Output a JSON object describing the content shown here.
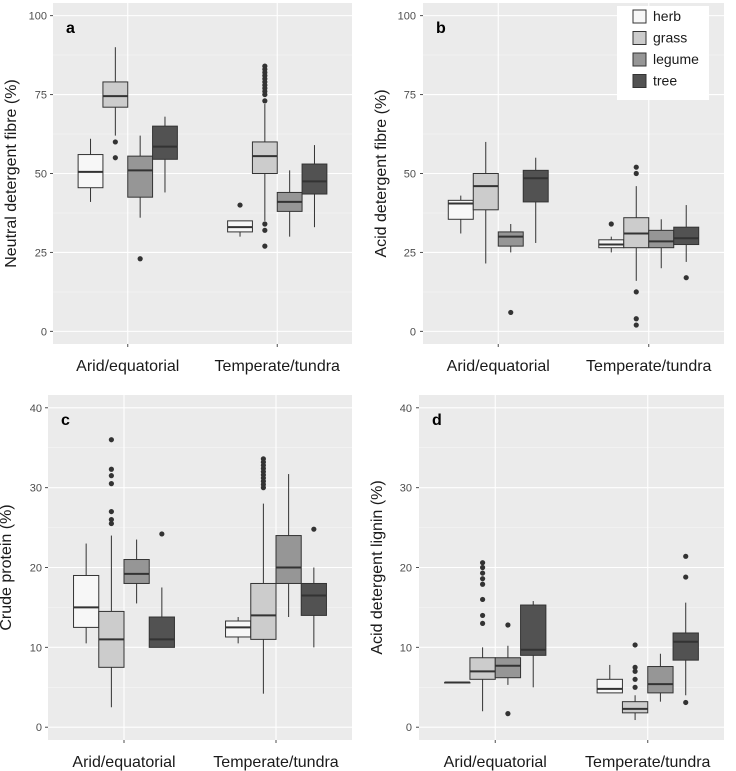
{
  "group_labels": [
    "Arid/equatorial",
    "Temperate/tundra"
  ],
  "legend": {
    "entries": [
      {
        "name": "herb",
        "color": "#f7f7f7"
      },
      {
        "name": "grass",
        "color": "#cccccc"
      },
      {
        "name": "legume",
        "color": "#969696"
      },
      {
        "name": "tree",
        "color": "#525252"
      }
    ]
  },
  "colors": {
    "panel_bg": "#ebebeb",
    "grid": "#ffffff",
    "box_stroke": "#333333",
    "outlier": "#333333"
  },
  "chart_data": [
    {
      "type": "boxplot",
      "panel": "a",
      "ylabel": "Neutral detergent fibre (%)",
      "ylim": [
        -4,
        104
      ],
      "yticks": [
        0,
        25,
        50,
        75,
        100
      ],
      "categories": [
        "Arid/equatorial",
        "Temperate/tundra"
      ],
      "series": [
        {
          "name": "herb",
          "boxes": [
            {
              "min": 41,
              "q1": 45.5,
              "median": 50.5,
              "q3": 56,
              "max": 61,
              "outliers": []
            },
            {
              "min": 30,
              "q1": 31.5,
              "median": 33,
              "q3": 35,
              "max": 35,
              "outliers": [
                40
              ]
            }
          ]
        },
        {
          "name": "grass",
          "boxes": [
            {
              "min": 62,
              "q1": 71,
              "median": 74.5,
              "q3": 79,
              "max": 90,
              "outliers": [
                60,
                55
              ]
            },
            {
              "min": 35,
              "q1": 50,
              "median": 55.5,
              "q3": 60,
              "max": 72,
              "outliers": [
                84,
                83,
                82,
                81,
                80,
                79,
                78,
                77,
                76,
                75,
                73,
                34,
                32,
                27
              ]
            }
          ]
        },
        {
          "name": "legume",
          "boxes": [
            {
              "min": 36,
              "q1": 42.5,
              "median": 51,
              "q3": 55.5,
              "max": 62,
              "outliers": [
                23
              ]
            },
            {
              "min": 30,
              "q1": 38,
              "median": 41,
              "q3": 44,
              "max": 51,
              "outliers": []
            }
          ]
        },
        {
          "name": "tree",
          "boxes": [
            {
              "min": 44,
              "q1": 54.5,
              "median": 58.5,
              "q3": 65,
              "max": 68,
              "outliers": []
            },
            {
              "min": 33,
              "q1": 43.5,
              "median": 47.5,
              "q3": 53,
              "max": 59,
              "outliers": []
            }
          ]
        }
      ]
    },
    {
      "type": "boxplot",
      "panel": "b",
      "ylabel": "Acid detergent fibre (%)",
      "ylim": [
        -4,
        104
      ],
      "yticks": [
        0,
        25,
        50,
        75,
        100
      ],
      "categories": [
        "Arid/equatorial",
        "Temperate/tundra"
      ],
      "series": [
        {
          "name": "herb",
          "boxes": [
            {
              "min": 31,
              "q1": 35.5,
              "median": 40.5,
              "q3": 41.5,
              "max": 43,
              "outliers": []
            },
            {
              "min": 25,
              "q1": 26.5,
              "median": 27.5,
              "q3": 29,
              "max": 30,
              "outliers": [
                34
              ]
            }
          ]
        },
        {
          "name": "grass",
          "boxes": [
            {
              "min": 21.5,
              "q1": 38.5,
              "median": 46,
              "q3": 50,
              "max": 60,
              "outliers": []
            },
            {
              "min": 16,
              "q1": 26.5,
              "median": 31,
              "q3": 36,
              "max": 46,
              "outliers": [
                52,
                50,
                12.5,
                4,
                2
              ]
            }
          ]
        },
        {
          "name": "legume",
          "boxes": [
            {
              "min": 25,
              "q1": 27,
              "median": 30,
              "q3": 31.5,
              "max": 34,
              "outliers": [
                6
              ]
            },
            {
              "min": 20,
              "q1": 26.5,
              "median": 28.5,
              "q3": 32,
              "max": 35.5,
              "outliers": []
            }
          ]
        },
        {
          "name": "tree",
          "boxes": [
            {
              "min": 28,
              "q1": 41,
              "median": 48.5,
              "q3": 51,
              "max": 55,
              "outliers": []
            },
            {
              "min": 22,
              "q1": 27.5,
              "median": 29.5,
              "q3": 33,
              "max": 40,
              "outliers": [
                17
              ]
            }
          ]
        }
      ]
    },
    {
      "type": "boxplot",
      "panel": "c",
      "ylabel": "Crude protein  (%)",
      "ylim": [
        -1.6,
        41.6
      ],
      "yticks": [
        0,
        10,
        20,
        30,
        40
      ],
      "categories": [
        "Arid/equatorial",
        "Temperate/tundra"
      ],
      "series": [
        {
          "name": "herb",
          "boxes": [
            {
              "min": 10.5,
              "q1": 12.5,
              "median": 15,
              "q3": 19,
              "max": 23,
              "outliers": []
            },
            {
              "min": 10.5,
              "q1": 11.3,
              "median": 12.5,
              "q3": 13.3,
              "max": 13.8,
              "outliers": []
            }
          ]
        },
        {
          "name": "grass",
          "boxes": [
            {
              "min": 2.5,
              "q1": 7.5,
              "median": 11,
              "q3": 14.5,
              "max": 24,
              "outliers": [
                36,
                32.3,
                31.5,
                30.5,
                27,
                26,
                25.5
              ]
            },
            {
              "min": 4.2,
              "q1": 11,
              "median": 14,
              "q3": 18,
              "max": 28,
              "outliers": [
                33.6,
                33.2,
                32.8,
                32.4,
                32,
                31.6,
                31.2,
                30.8,
                30.4,
                30
              ]
            }
          ]
        },
        {
          "name": "legume",
          "boxes": [
            {
              "min": 15.5,
              "q1": 18,
              "median": 19.2,
              "q3": 21,
              "max": 23.5,
              "outliers": []
            },
            {
              "min": 13.8,
              "q1": 18,
              "median": 20,
              "q3": 24,
              "max": 31.7,
              "outliers": []
            }
          ]
        },
        {
          "name": "tree",
          "boxes": [
            {
              "min": 10,
              "q1": 10,
              "median": 11,
              "q3": 13.8,
              "max": 17.5,
              "outliers": [
                24.2
              ]
            },
            {
              "min": 10,
              "q1": 14,
              "median": 16.5,
              "q3": 18,
              "max": 20,
              "outliers": [
                24.8
              ]
            }
          ]
        }
      ]
    },
    {
      "type": "boxplot",
      "panel": "d",
      "ylabel": "Acid detergent lignin (%)",
      "ylim": [
        -1.6,
        41.6
      ],
      "yticks": [
        0,
        10,
        20,
        30,
        40
      ],
      "categories": [
        "Arid/equatorial",
        "Temperate/tundra"
      ],
      "series": [
        {
          "name": "herb",
          "boxes": [
            {
              "min": 5.6,
              "q1": 5.6,
              "median": 5.6,
              "q3": 5.6,
              "max": 5.6,
              "outliers": []
            },
            {
              "min": 4.3,
              "q1": 4.3,
              "median": 4.8,
              "q3": 6,
              "max": 7.8,
              "outliers": []
            }
          ]
        },
        {
          "name": "grass",
          "boxes": [
            {
              "min": 2,
              "q1": 6,
              "median": 7,
              "q3": 8.7,
              "max": 10,
              "outliers": [
                20.6,
                20,
                19.3,
                18.6,
                17.9,
                16,
                14,
                13
              ]
            },
            {
              "min": 0.9,
              "q1": 1.8,
              "median": 2.3,
              "q3": 3.2,
              "max": 4,
              "outliers": [
                10.3,
                7.5,
                7,
                6,
                5
              ]
            }
          ]
        },
        {
          "name": "legume",
          "boxes": [
            {
              "min": 5.3,
              "q1": 6.2,
              "median": 7.7,
              "q3": 8.7,
              "max": 10.2,
              "outliers": [
                12.8,
                1.7
              ]
            },
            {
              "min": 3.2,
              "q1": 4.3,
              "median": 5.4,
              "q3": 7.6,
              "max": 9.2,
              "outliers": []
            }
          ]
        },
        {
          "name": "tree",
          "boxes": [
            {
              "min": 5,
              "q1": 9,
              "median": 9.7,
              "q3": 15.3,
              "max": 15.8,
              "outliers": []
            },
            {
              "min": 4,
              "q1": 8.4,
              "median": 10.7,
              "q3": 11.8,
              "max": 15.6,
              "outliers": [
                21.4,
                18.8,
                3.1
              ]
            }
          ]
        }
      ]
    }
  ]
}
